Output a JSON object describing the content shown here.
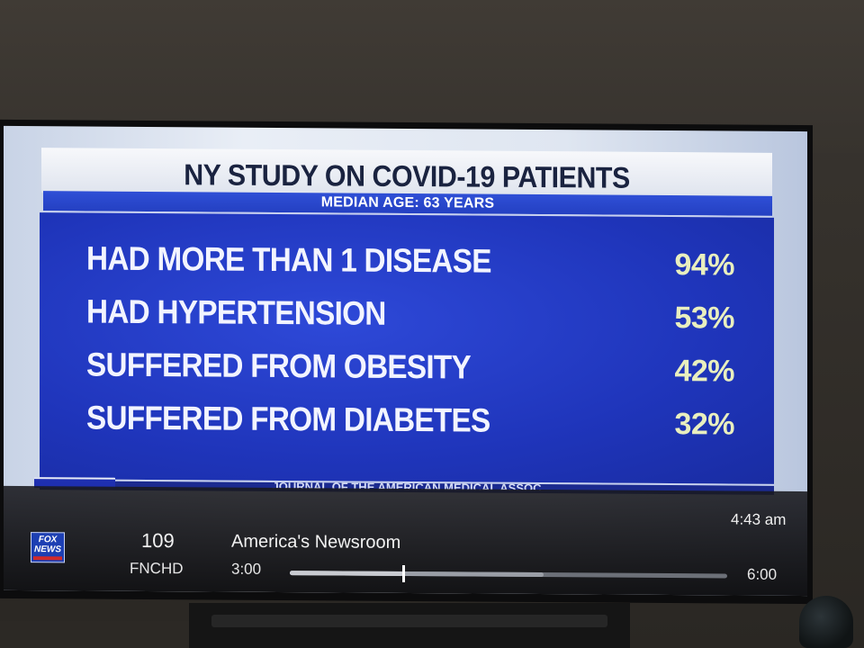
{
  "graphic": {
    "title": "NY STUDY ON COVID-19 PATIENTS",
    "subtitle": "MEDIAN AGE: 63 YEARS",
    "rows": [
      {
        "label": "HAD MORE THAN 1 DISEASE",
        "value": "94%"
      },
      {
        "label": "HAD HYPERTENSION",
        "value": "53%"
      },
      {
        "label": "SUFFERED FROM OBESITY",
        "value": "42%"
      },
      {
        "label": "SUFFERED FROM DIABETES",
        "value": "32%"
      }
    ],
    "source": "JOURNAL OF THE AMERICAN MEDICAL ASSOC"
  },
  "guide": {
    "clock": "4:43 am",
    "channel_number": "109",
    "channel_name": "FNCHD",
    "logo_top": "FOX",
    "logo_bottom": "NEWS",
    "program_title": "America's Newsroom",
    "start_time": "3:00",
    "end_time": "6:00",
    "progress_fraction": 0.26,
    "buffer_fraction": 0.58
  },
  "colors": {
    "graphic_blue": "#1f35bb",
    "value_text": "#e9efbf",
    "fox_red": "#d12a2a"
  },
  "icons": {
    "channel_logo": "fox-news-logo"
  }
}
